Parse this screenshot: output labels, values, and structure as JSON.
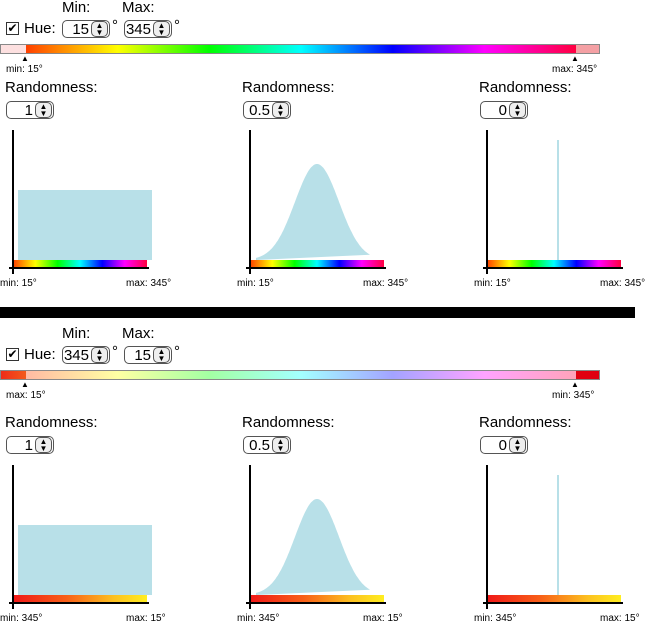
{
  "sections": [
    {
      "min_label": "Min:",
      "max_label": "Max:",
      "hue_label": "Hue:",
      "hue_checked": true,
      "min_value": "15",
      "max_value": "345",
      "degree": "°",
      "bar_left_label": "min: 15°",
      "bar_right_label": "max: 345°",
      "panels": [
        {
          "randomness_label": "Randomness:",
          "value": "1",
          "axis_left": "min: 15°",
          "axis_right": "max: 345°",
          "distribution": "uniform"
        },
        {
          "randomness_label": "Randomness:",
          "value": "0.5",
          "axis_left": "min: 15°",
          "axis_right": "max: 345°",
          "distribution": "gaussian"
        },
        {
          "randomness_label": "Randomness:",
          "value": "0",
          "axis_left": "min: 15°",
          "axis_right": "max: 345°",
          "distribution": "spike"
        }
      ]
    },
    {
      "min_label": "Min:",
      "max_label": "Max:",
      "hue_label": "Hue:",
      "hue_checked": true,
      "min_value": "345",
      "max_value": "15",
      "degree": "°",
      "bar_left_label": "max: 15°",
      "bar_right_label": "min: 345°",
      "panels": [
        {
          "randomness_label": "Randomness:",
          "value": "1",
          "axis_left": "min: 345°",
          "axis_right": "max: 15°",
          "distribution": "uniform"
        },
        {
          "randomness_label": "Randomness:",
          "value": "0.5",
          "axis_left": "min: 345°",
          "axis_right": "max: 15°",
          "distribution": "gaussian"
        },
        {
          "randomness_label": "Randomness:",
          "value": "0",
          "axis_left": "min: 345°",
          "axis_right": "max: 15°",
          "distribution": "spike"
        }
      ]
    }
  ],
  "colors": {
    "fill": "#b8e0e8"
  }
}
